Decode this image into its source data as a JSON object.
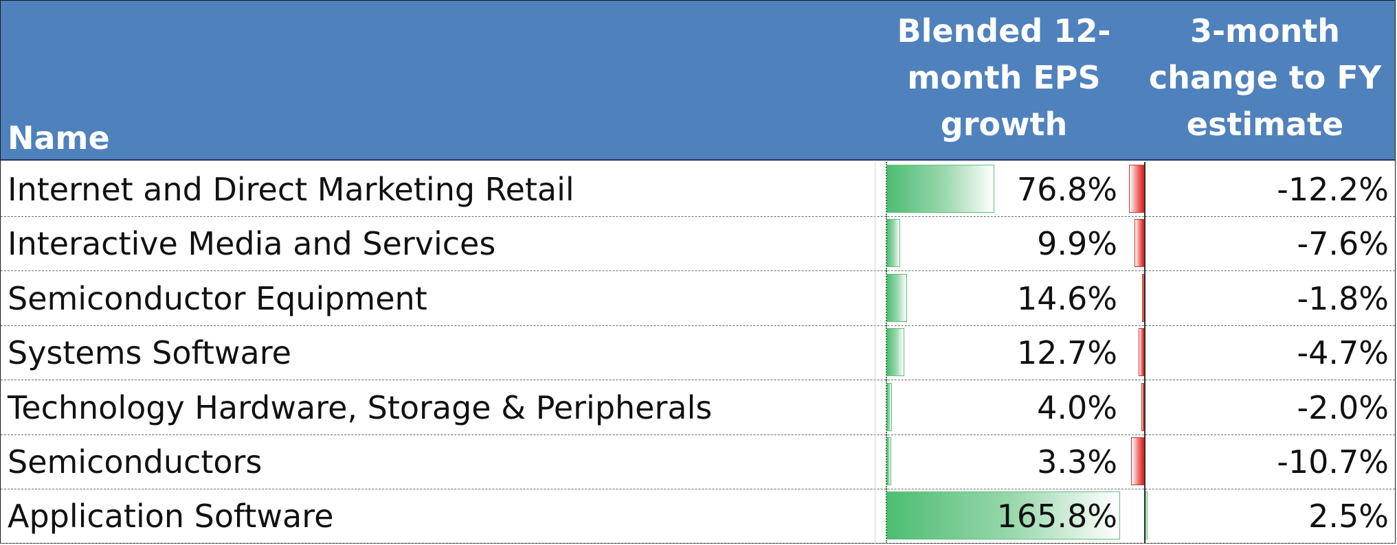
{
  "header": {
    "name": "Name",
    "eps_growth": "Blended 12-\nmonth EPS\ngrowth",
    "change": "3-month\nchange to FY\nestimate"
  },
  "rows": [
    {
      "name": "Internet and Direct Marketing Retail",
      "eps_growth": "76.8%",
      "eps_value": 76.8,
      "change": "-12.2%",
      "change_value": -12.2
    },
    {
      "name": "Interactive Media and Services",
      "eps_growth": "9.9%",
      "eps_value": 9.9,
      "change": "-7.6%",
      "change_value": -7.6
    },
    {
      "name": "Semiconductor Equipment",
      "eps_growth": "14.6%",
      "eps_value": 14.6,
      "change": "-1.8%",
      "change_value": -1.8
    },
    {
      "name": "Systems Software",
      "eps_growth": "12.7%",
      "eps_value": 12.7,
      "change": "-4.7%",
      "change_value": -4.7
    },
    {
      "name": "Technology Hardware, Storage & Peripherals",
      "eps_growth": "4.0%",
      "eps_value": 4.0,
      "change": "-2.0%",
      "change_value": -2.0
    },
    {
      "name": "Semiconductors",
      "eps_growth": "3.3%",
      "eps_value": 3.3,
      "change": "-10.7%",
      "change_value": -10.7
    },
    {
      "name": "Application Software",
      "eps_growth": "165.8%",
      "eps_value": 165.8,
      "change": "2.5%",
      "change_value": 2.5
    }
  ],
  "colors": {
    "header_bg": "#4f81bd",
    "positive_bar": "#63be7b",
    "negative_bar": "#e02020"
  }
}
